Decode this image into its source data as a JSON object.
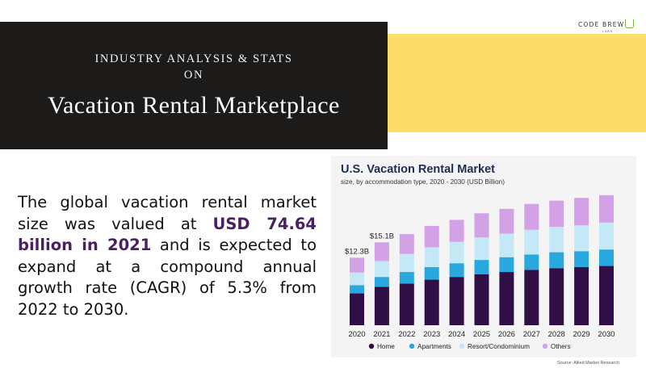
{
  "banner": {
    "line1": "INDUSTRY ANALYSIS & STATS",
    "line2": "ON",
    "title": "Vacation Rental Marketplace"
  },
  "logo": {
    "text": "CODE BREW",
    "sub": "LABS"
  },
  "paragraph": {
    "part1": "The global vacation rental market size was valued at ",
    "highlight": "USD 74.64 billion in 2021",
    "part2": " and is expected to expand at a compound annual growth rate (CAGR) of 5.3% from 2022 to 2030."
  },
  "colors": {
    "banner_bg": "#1c1b1a",
    "accent_yellow": "#fcdd6a",
    "highlight": "#4a1f63",
    "chart_title": "#1d2d52"
  },
  "chart_data": {
    "type": "bar",
    "stacked": true,
    "title": "U.S. Vacation Rental Market",
    "subtitle": "size, by accommodation type, 2020 - 2030 (USD Billion)",
    "categories": [
      "2020",
      "2021",
      "2022",
      "2023",
      "2024",
      "2025",
      "2026",
      "2027",
      "2028",
      "2029",
      "2030"
    ],
    "series": [
      {
        "name": "Home",
        "color": "#2f0f45",
        "values": [
          5.8,
          7.0,
          7.6,
          8.3,
          8.8,
          9.3,
          9.7,
          10.1,
          10.4,
          10.6,
          10.8
        ]
      },
      {
        "name": "Apartments",
        "color": "#29a8e0",
        "values": [
          1.5,
          1.8,
          2.1,
          2.3,
          2.5,
          2.6,
          2.7,
          2.8,
          2.9,
          2.9,
          3.0
        ]
      },
      {
        "name": "Resort/Condominium",
        "color": "#c5e8f7",
        "values": [
          2.3,
          2.9,
          3.3,
          3.6,
          3.9,
          4.1,
          4.3,
          4.5,
          4.6,
          4.7,
          4.9
        ]
      },
      {
        "name": "Others",
        "color": "#d2a1e6",
        "values": [
          2.7,
          3.4,
          3.6,
          3.9,
          4.0,
          4.4,
          4.5,
          4.7,
          4.8,
          5.0,
          5.0
        ]
      }
    ],
    "annotations": [
      {
        "category": "2020",
        "label": "$12.3B"
      },
      {
        "category": "2021",
        "label": "$15.1B"
      }
    ],
    "ylim": [
      0,
      25
    ],
    "grid": false,
    "legend": "bottom"
  },
  "source": "Source: Allied Market Research"
}
